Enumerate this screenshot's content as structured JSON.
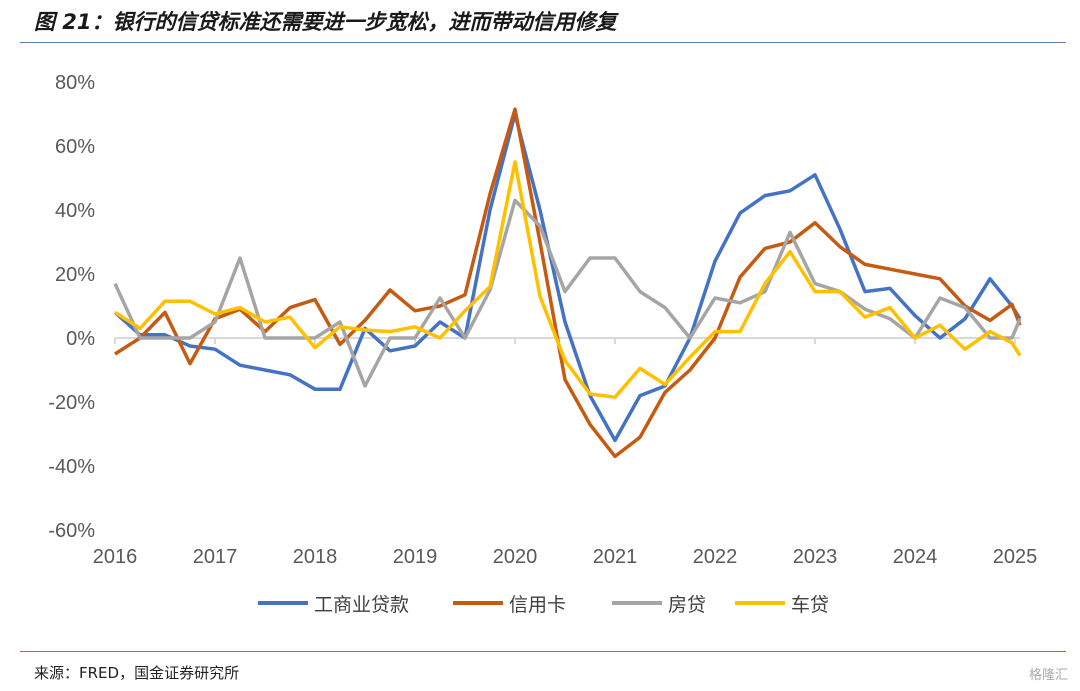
{
  "title": "图 21：银行的信贷标准还需要进一步宽松，进而带动信用修复",
  "source": "来源：FRED，国金证券研究所",
  "watermark": "格隆汇",
  "chart_data": {
    "type": "line",
    "title": "图 21：银行的信贷标准还需要进一步宽松，进而带动信用修复",
    "xlabel": "",
    "ylabel": "",
    "ylim": [
      -60,
      80
    ],
    "yticks": [
      -60,
      -40,
      -20,
      0,
      20,
      40,
      60,
      80
    ],
    "ytick_labels": [
      "-60%",
      "-40%",
      "-20%",
      "0%",
      "20%",
      "40%",
      "60%",
      "80%"
    ],
    "xlim": [
      2016,
      2025
    ],
    "xticks": [
      2016,
      2017,
      2018,
      2019,
      2020,
      2021,
      2022,
      2023,
      2024,
      2025
    ],
    "xtick_labels": [
      "2016",
      "2017",
      "2018",
      "2019",
      "2020",
      "2021",
      "2022",
      "2023",
      "2024",
      "2025"
    ],
    "legend_position": "bottom",
    "x": [
      2016,
      2016.25,
      2016.5,
      2016.75,
      2017,
      2017.25,
      2017.5,
      2017.75,
      2018,
      2018.25,
      2018.5,
      2018.75,
      2019,
      2019.25,
      2019.5,
      2019.75,
      2020,
      2020.25,
      2020.5,
      2020.75,
      2021,
      2021.25,
      2021.5,
      2021.75,
      2022,
      2022.25,
      2022.5,
      2022.75,
      2023,
      2023.25,
      2023.5,
      2023.75,
      2024,
      2024.25,
      2024.5,
      2024.75,
      2024.97,
      2025.05
    ],
    "series": [
      {
        "name": "工商业贷款",
        "color": "#4472c4",
        "values": [
          8,
          1,
          1,
          -2.5,
          -3.5,
          -8.5,
          -10,
          -11.5,
          -16,
          -16,
          3,
          -4,
          -2.5,
          5,
          0,
          40,
          70,
          40,
          5,
          -18,
          -32,
          -18,
          -15,
          0,
          24,
          39,
          44.5,
          46,
          51,
          34,
          14.5,
          15.5,
          7,
          0,
          6,
          18.5,
          10,
          6
        ]
      },
      {
        "name": "信用卡",
        "color": "#c55a11",
        "values": [
          -5,
          0,
          8,
          -8,
          6,
          9,
          2,
          9.5,
          12,
          -2,
          5.5,
          15,
          8.5,
          10,
          13.5,
          45,
          71.5,
          30,
          -13,
          -27,
          -37,
          -31,
          -17,
          -10,
          0,
          19,
          28,
          30,
          36,
          28.5,
          23,
          21.5,
          20,
          18.5,
          10,
          5.5,
          10.5,
          4
        ]
      },
      {
        "name": "房贷",
        "color": "#a5a5a5",
        "values": [
          17,
          0,
          0,
          0,
          5,
          25,
          0,
          0,
          0,
          5,
          -15,
          0,
          0,
          12.5,
          0,
          15,
          43,
          35,
          14.5,
          25,
          25,
          14.5,
          9.5,
          0,
          12.5,
          11,
          14.5,
          33,
          17,
          14.5,
          9,
          6,
          0,
          12.5,
          9.5,
          0,
          0,
          6
        ]
      },
      {
        "name": "车贷",
        "color": "#ffc000",
        "values": [
          8,
          3,
          11.5,
          11.5,
          7.5,
          9.5,
          5,
          6.5,
          -3,
          3.5,
          2.5,
          2,
          3.5,
          0,
          8.5,
          16,
          55,
          13,
          -7,
          -17.5,
          -18.5,
          -9.5,
          -14.5,
          -6,
          2,
          2,
          17,
          27,
          14.5,
          14.5,
          6.5,
          9.5,
          0,
          4,
          -3.5,
          2,
          -1.5,
          -5.5
        ]
      }
    ]
  }
}
